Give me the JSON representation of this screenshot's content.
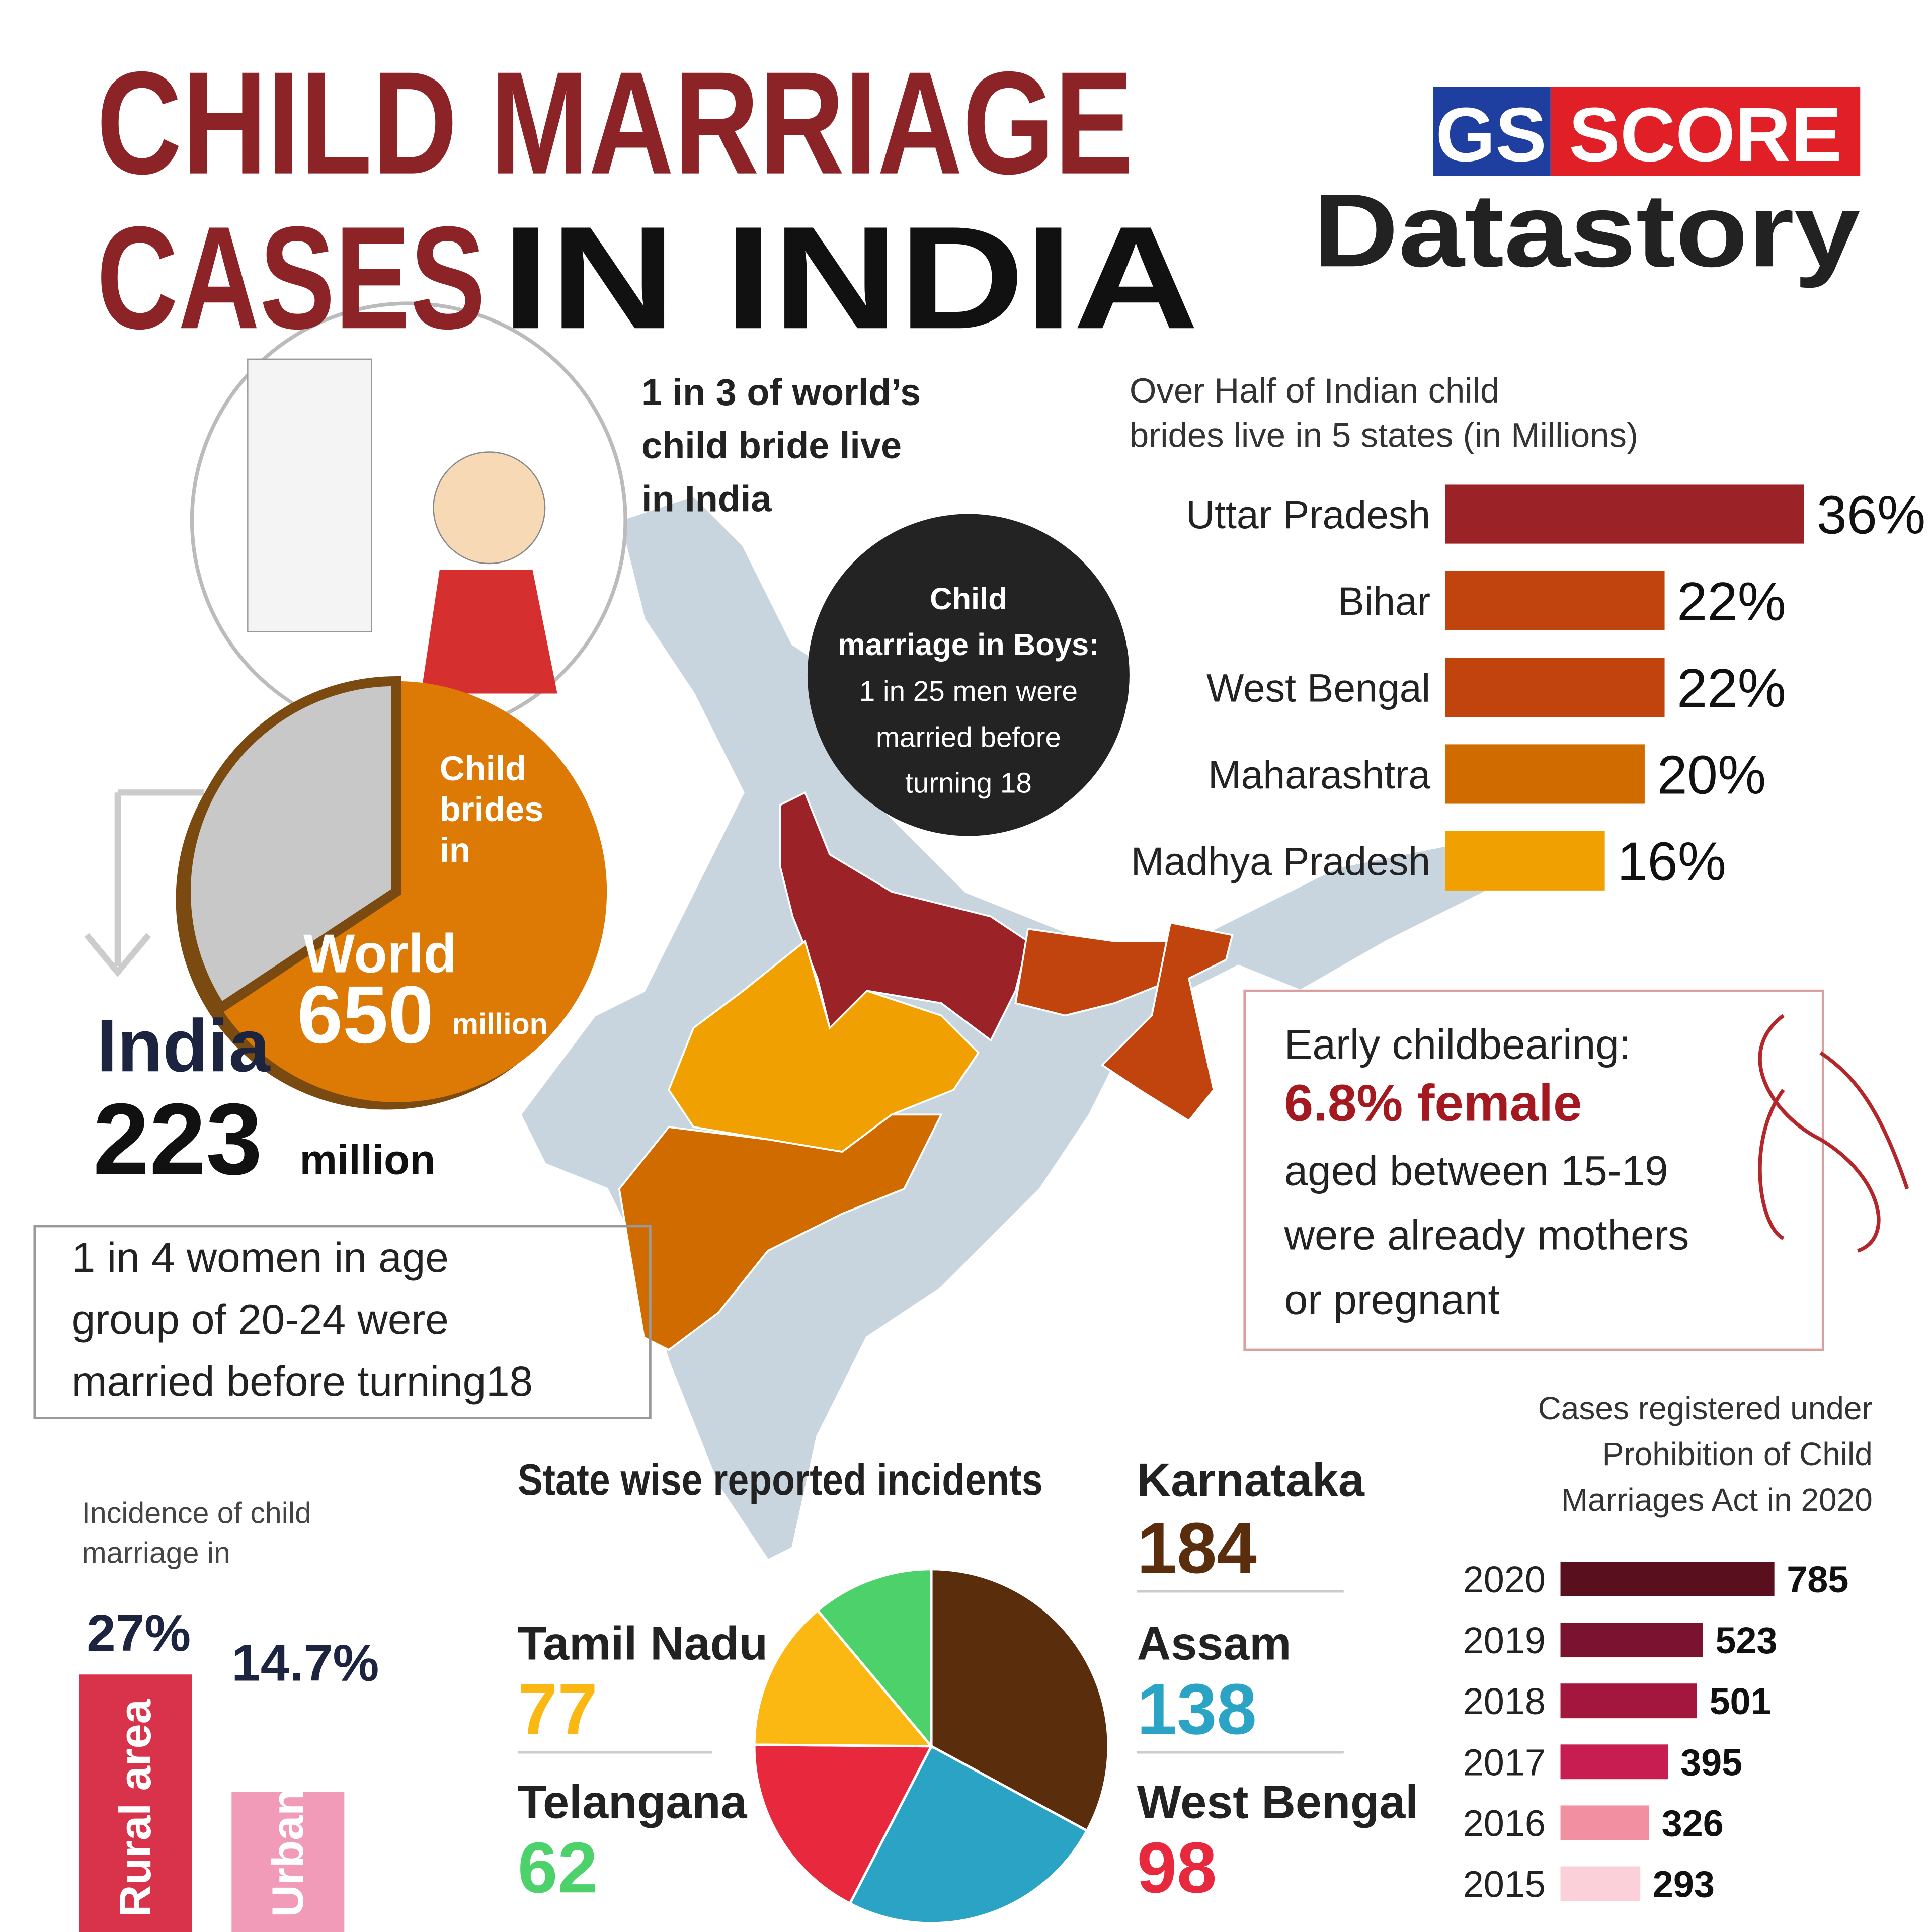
{
  "title": {
    "line1": "CHILD MARRIAGE",
    "line2a": "CASES",
    "line2b": "IN INDIA"
  },
  "logo": {
    "gs": "GS",
    "score": "SCORE",
    "datastory": "Datastory"
  },
  "world_stat": {
    "caption": [
      "Child",
      "brides",
      "in"
    ],
    "world_label": "World",
    "world_value": 650,
    "world_unit": "million",
    "india_label": "India",
    "india_value": 223,
    "india_unit": "million",
    "world_color": "#dc7a05",
    "india_color": "#c8c8c8"
  },
  "callouts": {
    "world_share": [
      "1 in 3 of world’s",
      "child bride live",
      "in India"
    ],
    "boys": [
      "Child",
      "marriage in Boys:",
      "1 in 25 men were",
      "married before",
      "turning 18"
    ],
    "women": [
      "1 in 4 women in age",
      "group of 20-24 were",
      "married before turning18"
    ],
    "childbearing": {
      "heading": "Early childbearing:",
      "highlight": "6.8% female",
      "rest": [
        "aged between 15-19",
        "were already mothers",
        "or pregnant"
      ]
    }
  },
  "chart_data": [
    {
      "type": "hbar",
      "title": [
        "Over Half of Indian child",
        "brides live in 5 states (in Millions)"
      ],
      "categories": [
        "Uttar Pradesh",
        "Bihar",
        "West Bengal",
        "Maharashtra",
        "Madhya Pradesh"
      ],
      "values": [
        36,
        22,
        22,
        20,
        16
      ],
      "value_labels": [
        "36%",
        "22%",
        "22%",
        "20%",
        "16%"
      ],
      "colors": [
        "#9b2226",
        "#c1440e",
        "#c1440e",
        "#d06b00",
        "#f0a000"
      ],
      "xlim": [
        0,
        40
      ]
    },
    {
      "type": "bar",
      "title": [
        "Incidence of child",
        "marriage in"
      ],
      "categories": [
        "Rural area",
        "Urban area"
      ],
      "values": [
        27,
        14.7
      ],
      "value_labels": [
        "27%",
        "14.7%"
      ],
      "colors": [
        "#d8334a",
        "#f29bb8"
      ],
      "ylim": [
        0,
        30
      ]
    },
    {
      "type": "pie",
      "title": "State wise reported incidents",
      "categories": [
        "Karnataka",
        "Assam",
        "West Bengal",
        "Tamil Nadu",
        "Telangana"
      ],
      "values": [
        184,
        138,
        98,
        77,
        62
      ],
      "colors": [
        "#5a2d0c",
        "#2aa3c4",
        "#e8283c",
        "#fbb813",
        "#4cd16b"
      ]
    },
    {
      "type": "hbar",
      "title": [
        "Cases registered under",
        "Prohibition of Child",
        "Marriages Act in 2020"
      ],
      "categories": [
        "2020",
        "2019",
        "2018",
        "2017",
        "2016",
        "2015"
      ],
      "values": [
        785,
        523,
        501,
        395,
        326,
        293
      ],
      "colors": [
        "#5a0f1f",
        "#7a1330",
        "#a3173f",
        "#c81d50",
        "#f28fa0",
        "#fbd0d8"
      ],
      "xlim": [
        0,
        800
      ]
    }
  ]
}
